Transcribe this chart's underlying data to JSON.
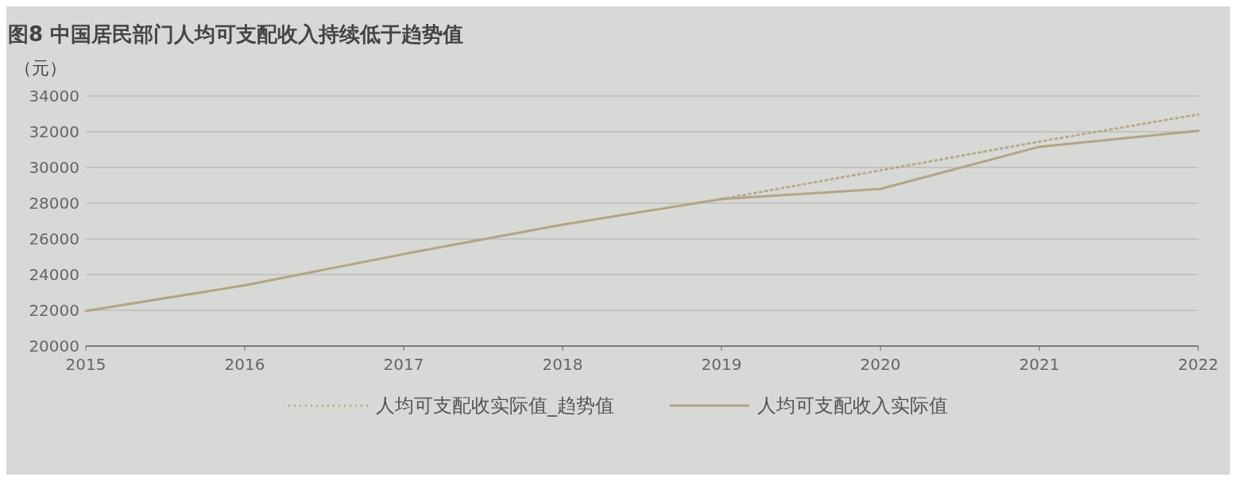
{
  "chart_data": {
    "type": "line",
    "title": "图8 中国居民部门人均可支配收入持续低于趋势值",
    "ylabel": "（元）",
    "categories": [
      "2015",
      "2016",
      "2017",
      "2018",
      "2019",
      "2020",
      "2021",
      "2022"
    ],
    "series": [
      {
        "name": "人均可支配收实际值_趋势值",
        "color": "#b5aa8a",
        "line_style": "dotted",
        "values": [
          null,
          null,
          null,
          null,
          28230,
          29840,
          31450,
          32970
        ]
      },
      {
        "name": "人均可支配收入实际值",
        "color": "#b0a584",
        "line_style": "solid",
        "values": [
          21970,
          23400,
          25150,
          26800,
          28230,
          28800,
          31160,
          32060
        ]
      }
    ],
    "ylim": [
      20000,
      34000
    ],
    "yticks": [
      20000,
      22000,
      24000,
      26000,
      28000,
      30000,
      32000,
      34000
    ],
    "grid": "y",
    "legend": "bottom",
    "marker": "none"
  }
}
